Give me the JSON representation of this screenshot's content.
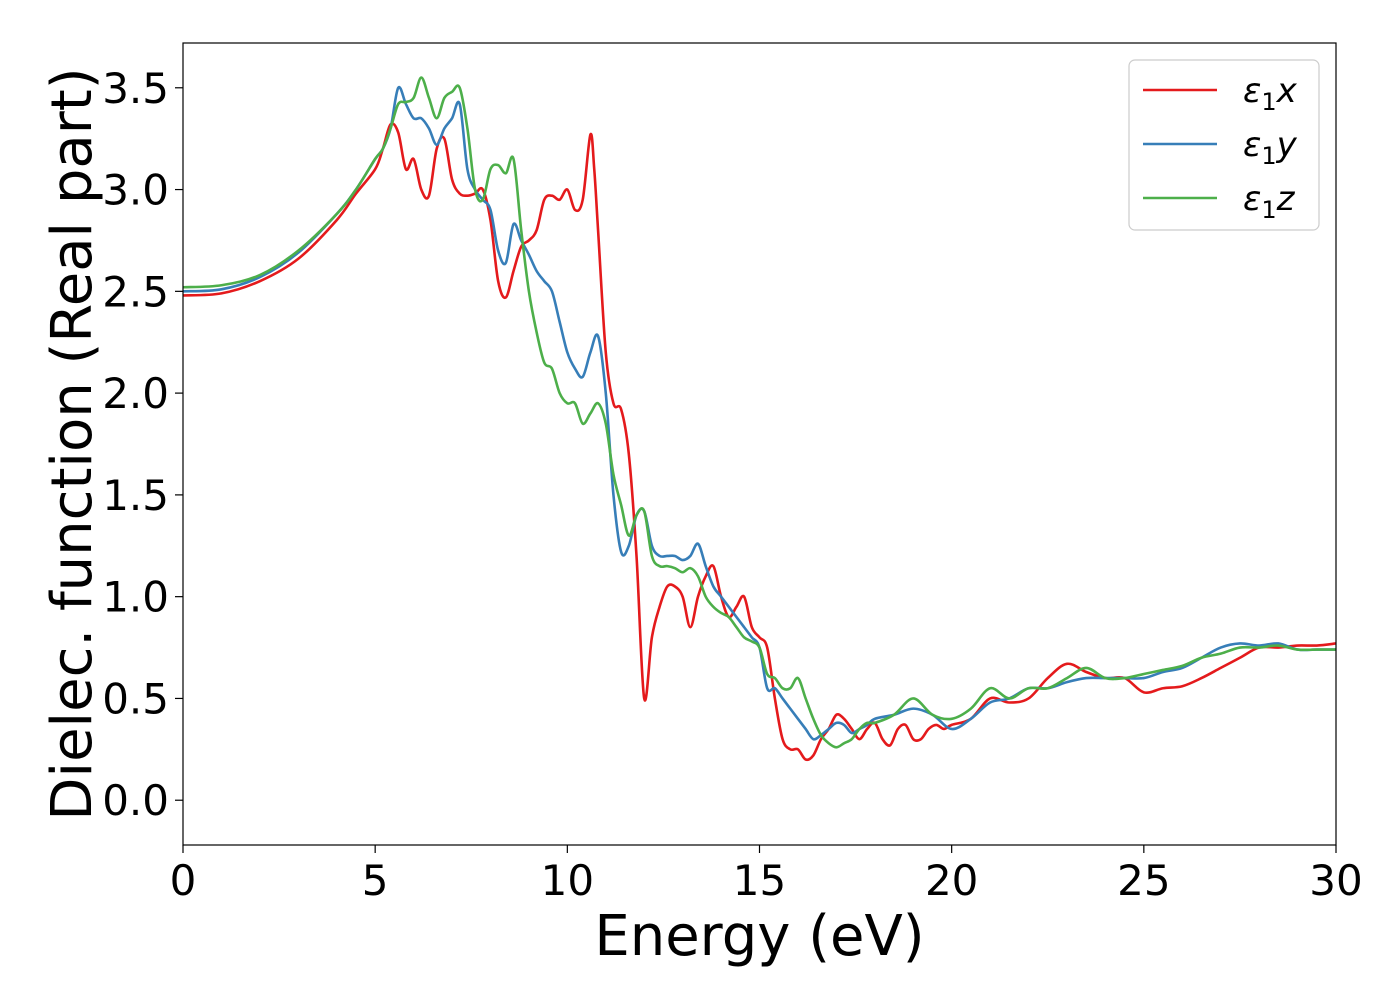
{
  "chart_data": {
    "type": "line",
    "xlabel": "Energy (eV)",
    "ylabel": "Dielec. function (Real part)",
    "xlim": [
      0,
      30
    ],
    "ylim": [
      -0.22,
      3.72
    ],
    "xticks": [
      0,
      5,
      10,
      15,
      20,
      25,
      30
    ],
    "yticks": [
      0.0,
      0.5,
      1.0,
      1.5,
      2.0,
      2.5,
      3.0,
      3.5
    ],
    "xtick_labels": [
      "0",
      "5",
      "10",
      "15",
      "20",
      "25",
      "30"
    ],
    "ytick_labels": [
      "0.0",
      "0.5",
      "1.0",
      "1.5",
      "2.0",
      "2.5",
      "3.0",
      "3.5"
    ],
    "grid": false,
    "legend_position": "top-right",
    "series": [
      {
        "name": "ε1x",
        "label_base": "ε",
        "label_sub": "1",
        "label_suffix": "x",
        "color": "#e41a1c",
        "x": [
          0,
          1,
          2,
          3,
          4,
          4.5,
          5,
          5.2,
          5.4,
          5.6,
          5.8,
          6.0,
          6.2,
          6.4,
          6.6,
          6.8,
          7.0,
          7.2,
          7.4,
          7.6,
          7.8,
          8.0,
          8.2,
          8.4,
          8.6,
          8.8,
          9.0,
          9.2,
          9.4,
          9.6,
          9.8,
          10.0,
          10.2,
          10.4,
          10.6,
          10.7,
          10.8,
          11.0,
          11.2,
          11.4,
          11.6,
          11.8,
          12.0,
          12.2,
          12.4,
          12.6,
          12.8,
          13.0,
          13.2,
          13.4,
          13.6,
          13.8,
          14.0,
          14.2,
          14.4,
          14.6,
          14.8,
          15.0,
          15.2,
          15.4,
          15.6,
          15.8,
          16.0,
          16.2,
          16.4,
          16.6,
          16.8,
          17.0,
          17.2,
          17.4,
          17.6,
          17.8,
          18.0,
          18.2,
          18.4,
          18.6,
          18.8,
          19.0,
          19.2,
          19.4,
          19.6,
          19.8,
          20.0,
          20.5,
          21.0,
          21.5,
          22.0,
          22.5,
          23.0,
          23.5,
          24.0,
          24.5,
          25.0,
          25.5,
          26.0,
          26.5,
          27.0,
          27.5,
          28.0,
          28.5,
          29.0,
          29.5,
          30.0
        ],
        "y": [
          2.48,
          2.49,
          2.55,
          2.66,
          2.85,
          2.98,
          3.1,
          3.2,
          3.32,
          3.28,
          3.1,
          3.15,
          3.0,
          2.97,
          3.2,
          3.25,
          3.05,
          2.98,
          2.97,
          2.98,
          3.0,
          2.85,
          2.55,
          2.47,
          2.6,
          2.72,
          2.75,
          2.8,
          2.95,
          2.97,
          2.95,
          3.0,
          2.9,
          2.95,
          3.27,
          3.1,
          2.8,
          2.2,
          1.95,
          1.92,
          1.7,
          1.2,
          0.5,
          0.8,
          0.95,
          1.05,
          1.05,
          1.0,
          0.85,
          1.0,
          1.1,
          1.15,
          1.0,
          0.9,
          0.95,
          1.0,
          0.85,
          0.8,
          0.75,
          0.5,
          0.3,
          0.25,
          0.25,
          0.2,
          0.22,
          0.3,
          0.35,
          0.42,
          0.4,
          0.35,
          0.3,
          0.35,
          0.38,
          0.3,
          0.27,
          0.35,
          0.37,
          0.3,
          0.3,
          0.35,
          0.37,
          0.35,
          0.37,
          0.4,
          0.5,
          0.48,
          0.5,
          0.6,
          0.67,
          0.63,
          0.6,
          0.6,
          0.53,
          0.55,
          0.56,
          0.6,
          0.65,
          0.7,
          0.75,
          0.75,
          0.76,
          0.76,
          0.77
        ]
      },
      {
        "name": "ε1y",
        "label_base": "ε",
        "label_sub": "1",
        "label_suffix": "y",
        "color": "#377eb8",
        "x": [
          0,
          1,
          2,
          3,
          4,
          4.5,
          5,
          5.2,
          5.4,
          5.6,
          5.8,
          6.0,
          6.2,
          6.4,
          6.6,
          6.8,
          7.0,
          7.2,
          7.4,
          7.6,
          7.8,
          8.0,
          8.2,
          8.4,
          8.6,
          8.8,
          9.0,
          9.2,
          9.4,
          9.6,
          9.8,
          10.0,
          10.2,
          10.4,
          10.6,
          10.8,
          11.0,
          11.2,
          11.4,
          11.6,
          11.8,
          12.0,
          12.2,
          12.4,
          12.6,
          12.8,
          13.0,
          13.2,
          13.4,
          13.6,
          13.8,
          14.0,
          14.2,
          14.4,
          14.6,
          14.8,
          15.0,
          15.2,
          15.4,
          15.6,
          15.8,
          16.0,
          16.2,
          16.4,
          16.6,
          16.8,
          17.0,
          17.2,
          17.4,
          17.6,
          17.8,
          18.0,
          18.5,
          19.0,
          19.5,
          20.0,
          20.5,
          21.0,
          21.5,
          22.0,
          22.5,
          23.0,
          23.5,
          24.0,
          24.5,
          25.0,
          25.5,
          26.0,
          26.5,
          27.0,
          27.5,
          28.0,
          28.5,
          29.0,
          29.5,
          30.0
        ],
        "y": [
          2.5,
          2.51,
          2.57,
          2.69,
          2.88,
          3.0,
          3.15,
          3.2,
          3.3,
          3.5,
          3.42,
          3.35,
          3.35,
          3.3,
          3.22,
          3.3,
          3.35,
          3.42,
          3.1,
          3.0,
          2.95,
          2.9,
          2.7,
          2.64,
          2.83,
          2.75,
          2.68,
          2.6,
          2.55,
          2.5,
          2.35,
          2.2,
          2.12,
          2.08,
          2.2,
          2.28,
          2.0,
          1.5,
          1.22,
          1.25,
          1.4,
          1.42,
          1.25,
          1.2,
          1.2,
          1.2,
          1.18,
          1.2,
          1.26,
          1.15,
          1.05,
          1.0,
          0.95,
          0.9,
          0.85,
          0.8,
          0.75,
          0.55,
          0.55,
          0.5,
          0.45,
          0.4,
          0.35,
          0.3,
          0.32,
          0.35,
          0.38,
          0.37,
          0.33,
          0.35,
          0.37,
          0.4,
          0.42,
          0.45,
          0.42,
          0.35,
          0.4,
          0.48,
          0.5,
          0.55,
          0.55,
          0.58,
          0.6,
          0.6,
          0.6,
          0.6,
          0.63,
          0.65,
          0.7,
          0.75,
          0.77,
          0.76,
          0.77,
          0.74,
          0.74,
          0.74
        ]
      },
      {
        "name": "ε1z",
        "label_base": "ε",
        "label_sub": "1",
        "label_suffix": "z",
        "color": "#4daf4a",
        "x": [
          0,
          1,
          2,
          3,
          4,
          4.5,
          5,
          5.2,
          5.4,
          5.6,
          5.8,
          6.0,
          6.2,
          6.4,
          6.6,
          6.8,
          7.0,
          7.2,
          7.4,
          7.6,
          7.8,
          8.0,
          8.2,
          8.4,
          8.6,
          8.8,
          9.0,
          9.2,
          9.4,
          9.6,
          9.8,
          10.0,
          10.2,
          10.4,
          10.6,
          10.8,
          11.0,
          11.2,
          11.4,
          11.6,
          11.8,
          12.0,
          12.2,
          12.4,
          12.6,
          12.8,
          13.0,
          13.2,
          13.4,
          13.6,
          13.8,
          14.0,
          14.2,
          14.4,
          14.6,
          14.8,
          15.0,
          15.2,
          15.4,
          15.6,
          15.8,
          16.0,
          16.2,
          16.4,
          16.6,
          16.8,
          17.0,
          17.2,
          17.4,
          17.6,
          17.8,
          18.0,
          18.5,
          19.0,
          19.5,
          20.0,
          20.5,
          21.0,
          21.5,
          22.0,
          22.5,
          23.0,
          23.5,
          24.0,
          24.5,
          25.0,
          25.5,
          26.0,
          26.5,
          27.0,
          27.5,
          28.0,
          28.5,
          29.0,
          29.5,
          30.0
        ],
        "y": [
          2.52,
          2.53,
          2.58,
          2.7,
          2.88,
          3.0,
          3.15,
          3.2,
          3.3,
          3.42,
          3.43,
          3.45,
          3.55,
          3.45,
          3.35,
          3.45,
          3.48,
          3.5,
          3.3,
          3.0,
          2.95,
          3.1,
          3.12,
          3.08,
          3.15,
          2.8,
          2.5,
          2.3,
          2.15,
          2.12,
          2.0,
          1.95,
          1.95,
          1.85,
          1.9,
          1.95,
          1.85,
          1.6,
          1.45,
          1.3,
          1.4,
          1.42,
          1.2,
          1.15,
          1.15,
          1.14,
          1.12,
          1.14,
          1.1,
          1.0,
          0.95,
          0.92,
          0.9,
          0.85,
          0.8,
          0.78,
          0.75,
          0.62,
          0.6,
          0.55,
          0.55,
          0.6,
          0.5,
          0.4,
          0.32,
          0.28,
          0.26,
          0.28,
          0.3,
          0.35,
          0.38,
          0.38,
          0.42,
          0.5,
          0.42,
          0.4,
          0.45,
          0.55,
          0.5,
          0.55,
          0.55,
          0.6,
          0.65,
          0.6,
          0.6,
          0.62,
          0.64,
          0.66,
          0.7,
          0.72,
          0.75,
          0.75,
          0.76,
          0.74,
          0.74,
          0.74
        ]
      }
    ]
  }
}
